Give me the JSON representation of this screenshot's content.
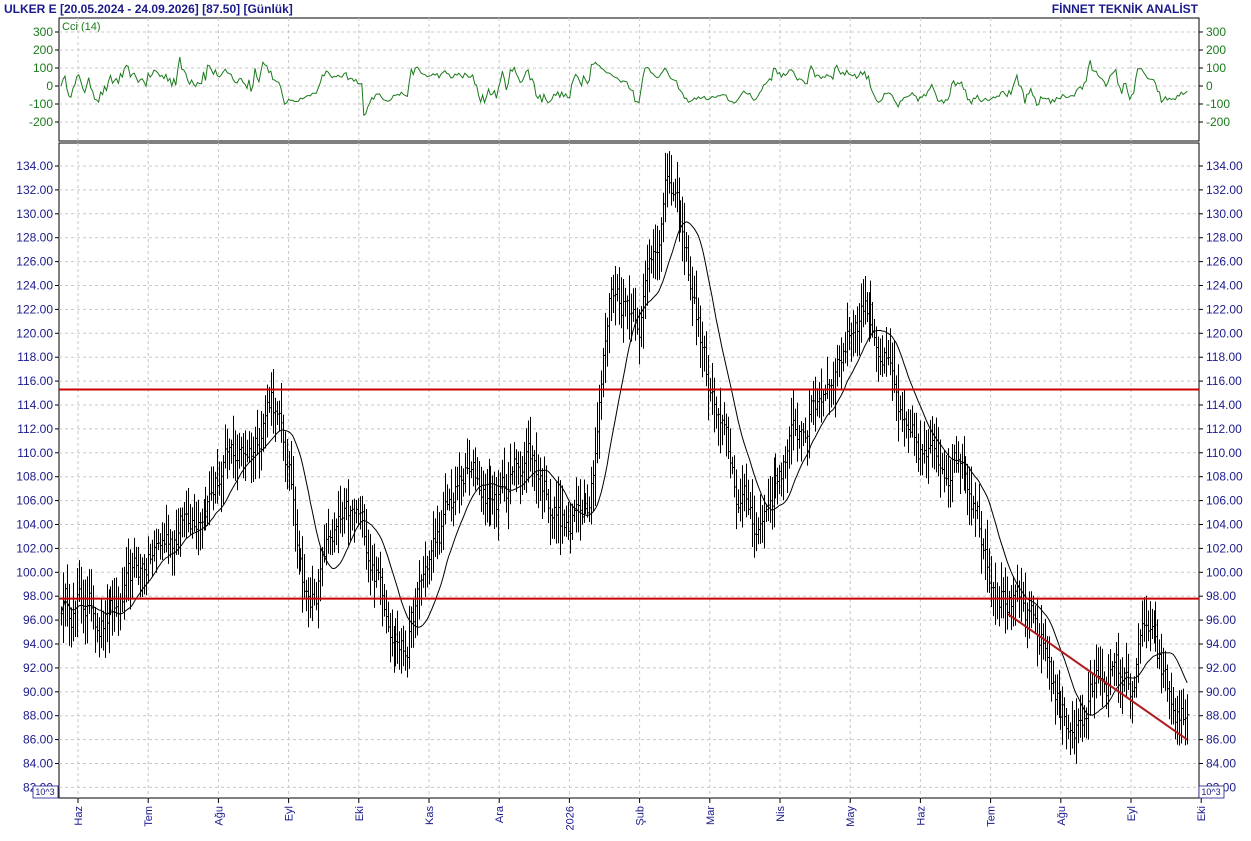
{
  "header": {
    "title": "ULKER E  [20.05.2024 - 24.09.2026]  [87.50]  [Günlük]",
    "brand": "FİNNET TEKNİK ANALİST"
  },
  "colors": {
    "axis_text": "#1a1a8c",
    "cci_line": "#1a7a1a",
    "price_bars": "#000000",
    "moving_average": "#000000",
    "support_resistance": "#cc0000",
    "trend_line": "#b01a1a",
    "grid": "#c8c8c8"
  },
  "cci_panel": {
    "label": "Cci (14)",
    "ticks": [
      "300",
      "200",
      "100",
      "0",
      "-100",
      "-200"
    ]
  },
  "chart_data": {
    "type": "ohlc",
    "price_ticks": [
      "134.00",
      "132.00",
      "130.00",
      "128.00",
      "126.00",
      "124.00",
      "122.00",
      "120.00",
      "118.00",
      "116.00",
      "114.00",
      "112.00",
      "110.00",
      "108.00",
      "106.00",
      "104.00",
      "102.00",
      "100.00",
      "98.00",
      "96.00",
      "94.00",
      "92.00",
      "90.00",
      "88.00",
      "86.00",
      "84.00",
      "82.00"
    ],
    "ylim": [
      82,
      135
    ],
    "scale_note": "10^3",
    "months": [
      "Haz",
      "Tem",
      "Ağu",
      "Eyl",
      "Eki",
      "Kas",
      "Ara",
      "2026",
      "Şub",
      "Mar",
      "Nis",
      "May",
      "Haz",
      "Tem",
      "Ağu",
      "Eyl",
      "Eki"
    ],
    "key_points": [
      {
        "pos": 0.0,
        "v": 97.5
      },
      {
        "pos": 0.5,
        "v": 96.0
      },
      {
        "pos": 1.0,
        "v": 101.0
      },
      {
        "pos": 2.0,
        "v": 108.0
      },
      {
        "pos": 2.5,
        "v": 111.0
      },
      {
        "pos": 2.75,
        "v": 115.5
      },
      {
        "pos": 3.05,
        "v": 106.0
      },
      {
        "pos": 3.3,
        "v": 97.0
      },
      {
        "pos": 3.6,
        "v": 103.0
      },
      {
        "pos": 4.0,
        "v": 104.0
      },
      {
        "pos": 4.5,
        "v": 96.0
      },
      {
        "pos": 4.65,
        "v": 93.5
      },
      {
        "pos": 5.0,
        "v": 101.0
      },
      {
        "pos": 5.5,
        "v": 108.0
      },
      {
        "pos": 6.0,
        "v": 106.0
      },
      {
        "pos": 6.4,
        "v": 110.5
      },
      {
        "pos": 7.0,
        "v": 103.0
      },
      {
        "pos": 7.3,
        "v": 108.0
      },
      {
        "pos": 7.6,
        "v": 124.0
      },
      {
        "pos": 8.0,
        "v": 122.0
      },
      {
        "pos": 8.4,
        "v": 133.0
      },
      {
        "pos": 8.8,
        "v": 122.0
      },
      {
        "pos": 9.0,
        "v": 115.0
      },
      {
        "pos": 9.4,
        "v": 106.0
      },
      {
        "pos": 9.7,
        "v": 104.0
      },
      {
        "pos": 10.0,
        "v": 109.0
      },
      {
        "pos": 10.5,
        "v": 114.0
      },
      {
        "pos": 10.8,
        "v": 118.0
      },
      {
        "pos": 11.2,
        "v": 123.0
      },
      {
        "pos": 11.5,
        "v": 118.0
      },
      {
        "pos": 11.8,
        "v": 110.0
      },
      {
        "pos": 12.2,
        "v": 109.0
      },
      {
        "pos": 12.6,
        "v": 110.5
      },
      {
        "pos": 13.0,
        "v": 101.0
      },
      {
        "pos": 13.4,
        "v": 96.5
      },
      {
        "pos": 13.8,
        "v": 93.0
      },
      {
        "pos": 14.0,
        "v": 88.0
      },
      {
        "pos": 14.3,
        "v": 87.5
      },
      {
        "pos": 14.6,
        "v": 92.0
      },
      {
        "pos": 15.0,
        "v": 90.5
      },
      {
        "pos": 15.2,
        "v": 95.5
      },
      {
        "pos": 15.6,
        "v": 88.0
      },
      {
        "pos": 15.8,
        "v": 87.5
      }
    ],
    "resistance": 115.3,
    "support": 97.8,
    "trendline": {
      "start_pos": 13.25,
      "start_v": 96.5,
      "end_pos": 15.8,
      "end_v": 86.0
    }
  }
}
